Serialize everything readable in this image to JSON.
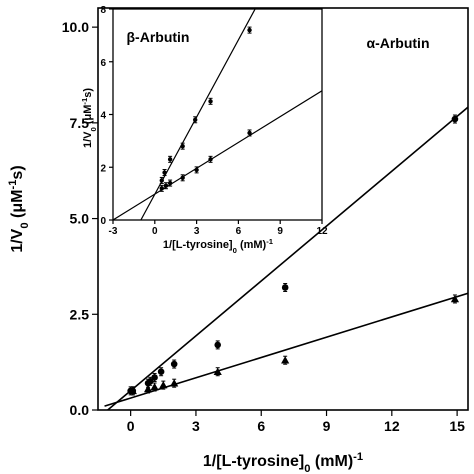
{
  "chart_data": [
    {
      "type": "scatter",
      "panel": "main",
      "xlabel": "1/[L-tyrosine]",
      "xlabel_sub": "0",
      "xlabel_unit": "(mM)",
      "xlabel_sup": "-1",
      "ylabel": "1/V",
      "ylabel_sub": "0",
      "ylabel_unit": "(μM",
      "ylabel_sup": "-1",
      "ylabel_tail": "s)",
      "xlim": [
        -1.5,
        15.5
      ],
      "ylim": [
        0,
        10.5
      ],
      "xticks": [
        0,
        3,
        6,
        9,
        12,
        15
      ],
      "yticks": [
        0.0,
        2.5,
        5.0,
        7.5,
        10.0
      ],
      "ytick_labels": [
        "0.0",
        "2.5",
        "5.0",
        "7.5",
        "10.0"
      ],
      "annotations": [
        {
          "text": "α-Arbutin",
          "position": "top-right"
        }
      ],
      "series": [
        {
          "marker": "circle",
          "x": [
            0.0,
            0.1,
            0.8,
            0.9,
            1.1,
            1.4,
            2.0,
            4.0,
            7.1,
            14.9
          ],
          "y": [
            0.5,
            0.5,
            0.7,
            0.75,
            0.85,
            1.0,
            1.2,
            1.7,
            3.2,
            7.6
          ],
          "fit": {
            "x": [
              -1.2,
              15.5
            ],
            "y": [
              -0.07,
              7.91
            ]
          }
        },
        {
          "marker": "triangle",
          "x": [
            0.1,
            0.8,
            1.1,
            1.5,
            2.0,
            4.0,
            7.1,
            14.9
          ],
          "y": [
            0.5,
            0.55,
            0.6,
            0.65,
            0.7,
            1.0,
            1.3,
            2.9
          ],
          "fit": {
            "x": [
              -1.2,
              15.5
            ],
            "y": [
              0.1,
              3.05
            ]
          }
        }
      ]
    },
    {
      "type": "scatter",
      "panel": "inset",
      "position": "top-left",
      "xlabel": "1/[L-tyrosine]",
      "xlabel_sub": "0",
      "xlabel_unit": "(mM)",
      "xlabel_sup": "-1",
      "ylabel": "1/V",
      "ylabel_sub": "0",
      "ylabel_unit": "(μM",
      "ylabel_sup": "-1",
      "ylabel_tail": "s)",
      "xlim": [
        -3,
        12
      ],
      "ylim": [
        0,
        8
      ],
      "xticks": [
        -3,
        0,
        3,
        6,
        9,
        12
      ],
      "yticks": [
        0,
        2,
        4,
        6,
        8
      ],
      "annotations": [
        {
          "text": "β-Arbutin",
          "position": "top-left"
        }
      ],
      "series": [
        {
          "marker": "circle",
          "x": [
            0.5,
            0.7,
            1.1,
            2.0,
            2.9,
            4.0,
            6.8
          ],
          "y": [
            1.5,
            1.8,
            2.3,
            2.8,
            3.8,
            4.5,
            7.2
          ],
          "fit": {
            "x": [
              -1.0,
              7.2
            ],
            "y": [
              0.0,
              8.0
            ]
          }
        },
        {
          "marker": "circle",
          "x": [
            0.5,
            0.8,
            1.1,
            2.0,
            3.0,
            4.0,
            6.8
          ],
          "y": [
            1.2,
            1.3,
            1.4,
            1.6,
            1.9,
            2.3,
            3.3
          ],
          "fit": {
            "x": [
              -3.0,
              12.0
            ],
            "y": [
              0.0,
              4.9
            ]
          }
        }
      ]
    }
  ]
}
